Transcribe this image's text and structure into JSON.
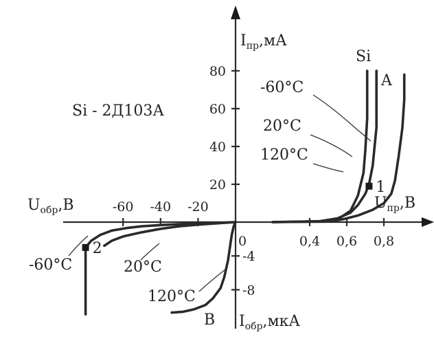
{
  "chart_data": {
    "type": "line",
    "title": "Si - 2Д103А",
    "material_label": "Si",
    "xlabel_forward": {
      "main": "U",
      "sub": "пр",
      "unit": ",В"
    },
    "xlabel_reverse": {
      "main": "U",
      "sub": "обр",
      "unit": ",В"
    },
    "ylabel_forward": {
      "main": "I",
      "sub": "пр",
      "unit": ",мА"
    },
    "ylabel_reverse": {
      "main": "I",
      "sub": "обр",
      "unit": ",мкА"
    },
    "x_forward_ticks": [
      "0,4",
      "0,6",
      "0,8"
    ],
    "x_forward_tick_values": [
      0.4,
      0.6,
      0.8
    ],
    "x_reverse_ticks": [
      "-60",
      "-40",
      "-20"
    ],
    "x_reverse_tick_values": [
      -60,
      -40,
      -20
    ],
    "y_forward_ticks": [
      "20",
      "40",
      "60",
      "80"
    ],
    "y_forward_tick_values": [
      20,
      40,
      60,
      80
    ],
    "y_reverse_ticks": [
      "-4",
      "-8"
    ],
    "y_reverse_tick_values": [
      -4,
      -8
    ],
    "origin_label": "0",
    "xlim_forward": [
      0,
      1.0
    ],
    "ylim_forward": [
      0,
      90
    ],
    "xlim_reverse": [
      -88,
      0
    ],
    "ylim_reverse": [
      -11,
      0
    ],
    "forward_series": [
      {
        "name": "-60°C",
        "x": [
          0.2,
          0.48,
          0.56,
          0.62,
          0.66,
          0.69,
          0.7,
          0.71,
          0.71
        ],
        "y": [
          0,
          0.5,
          2,
          6,
          14,
          26,
          38,
          55,
          80
        ]
      },
      {
        "name": "20°C",
        "x": [
          0.2,
          0.45,
          0.55,
          0.62,
          0.66,
          0.7,
          0.72,
          0.74,
          0.76,
          0.76
        ],
        "y": [
          0,
          0.4,
          2,
          5,
          9,
          15,
          20,
          30,
          50,
          80
        ]
      },
      {
        "name": "120°C",
        "x": [
          0.2,
          0.5,
          0.58,
          0.66,
          0.74,
          0.8,
          0.84,
          0.86,
          0.88,
          0.9,
          0.91,
          0.91
        ],
        "y": [
          0,
          0.3,
          1.5,
          3.5,
          6.5,
          10,
          15,
          22,
          35,
          50,
          65,
          78
        ]
      }
    ],
    "reverse_series": [
      {
        "name": "-60°C",
        "x": [
          0,
          -10,
          -20,
          -30,
          -40,
          -50,
          -58,
          -66,
          -72,
          -77,
          -80
        ],
        "y": [
          0,
          -0.1,
          -0.15,
          -0.25,
          -0.35,
          -0.5,
          -0.7,
          -1.0,
          -1.5,
          -2.2,
          -3
        ]
      },
      {
        "name": "20°C",
        "x": [
          0,
          -10,
          -20,
          -30,
          -40,
          -50,
          -60,
          -66,
          -70
        ],
        "y": [
          0,
          -0.15,
          -0.3,
          -0.5,
          -0.8,
          -1.2,
          -1.7,
          -2.2,
          -2.8
        ]
      },
      {
        "name": "120°C",
        "x": [
          0,
          -1,
          -2,
          -3,
          -4,
          -6,
          -8,
          -12,
          -16,
          -22,
          -28,
          -34
        ],
        "y": [
          0,
          -0.5,
          -1.5,
          -3,
          -4.5,
          -6.5,
          -7.8,
          -9,
          -9.8,
          -10.3,
          -10.6,
          -10.7
        ]
      }
    ],
    "breakdown_drop": {
      "x": -80,
      "y_from": -3,
      "y_to": -10.9
    },
    "curve_labels": [
      "-60°C",
      "20°C",
      "120°C"
    ],
    "branch_labels": {
      "A": "A",
      "B": "B"
    },
    "point_labels": [
      {
        "label": "1",
        "x": 0.72,
        "y": 19
      },
      {
        "label": "2",
        "x": -80,
        "y": -3
      }
    ]
  }
}
